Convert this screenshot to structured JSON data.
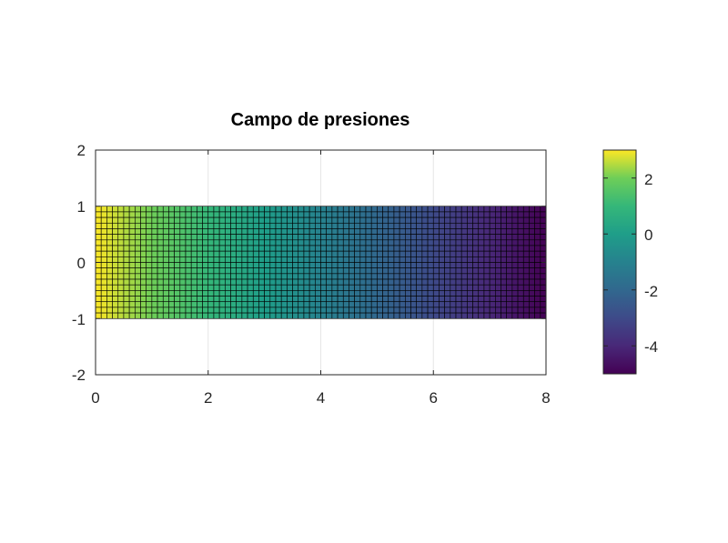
{
  "chart_data": {
    "type": "heatmap",
    "title": "Campo de presiones",
    "xlabel": "",
    "ylabel": "",
    "xlim": [
      0,
      8
    ],
    "ylim": [
      -2,
      2
    ],
    "xticks": [
      "0",
      "2",
      "4",
      "6",
      "8"
    ],
    "yticks": [
      "2",
      "1",
      "0",
      "-1",
      "-2"
    ],
    "grid": true,
    "mesh": {
      "x_range": [
        0,
        8
      ],
      "y_range": [
        -1,
        1
      ],
      "columns": 80,
      "rows": 20,
      "edge_color": "#000000"
    },
    "field": {
      "description_axis": "x",
      "value_at_x_min": 3,
      "value_at_x_max": -5
    },
    "colorbar": {
      "colormap": "viridis",
      "clim": [
        -5,
        3
      ],
      "ticks": [
        "2",
        "0",
        "-2",
        "-4"
      ],
      "position": "right"
    },
    "colors": {
      "viridis_low": "#440154",
      "viridis_high": "#fde725",
      "grid": "#e6e6e6",
      "axis": "#262626"
    }
  }
}
